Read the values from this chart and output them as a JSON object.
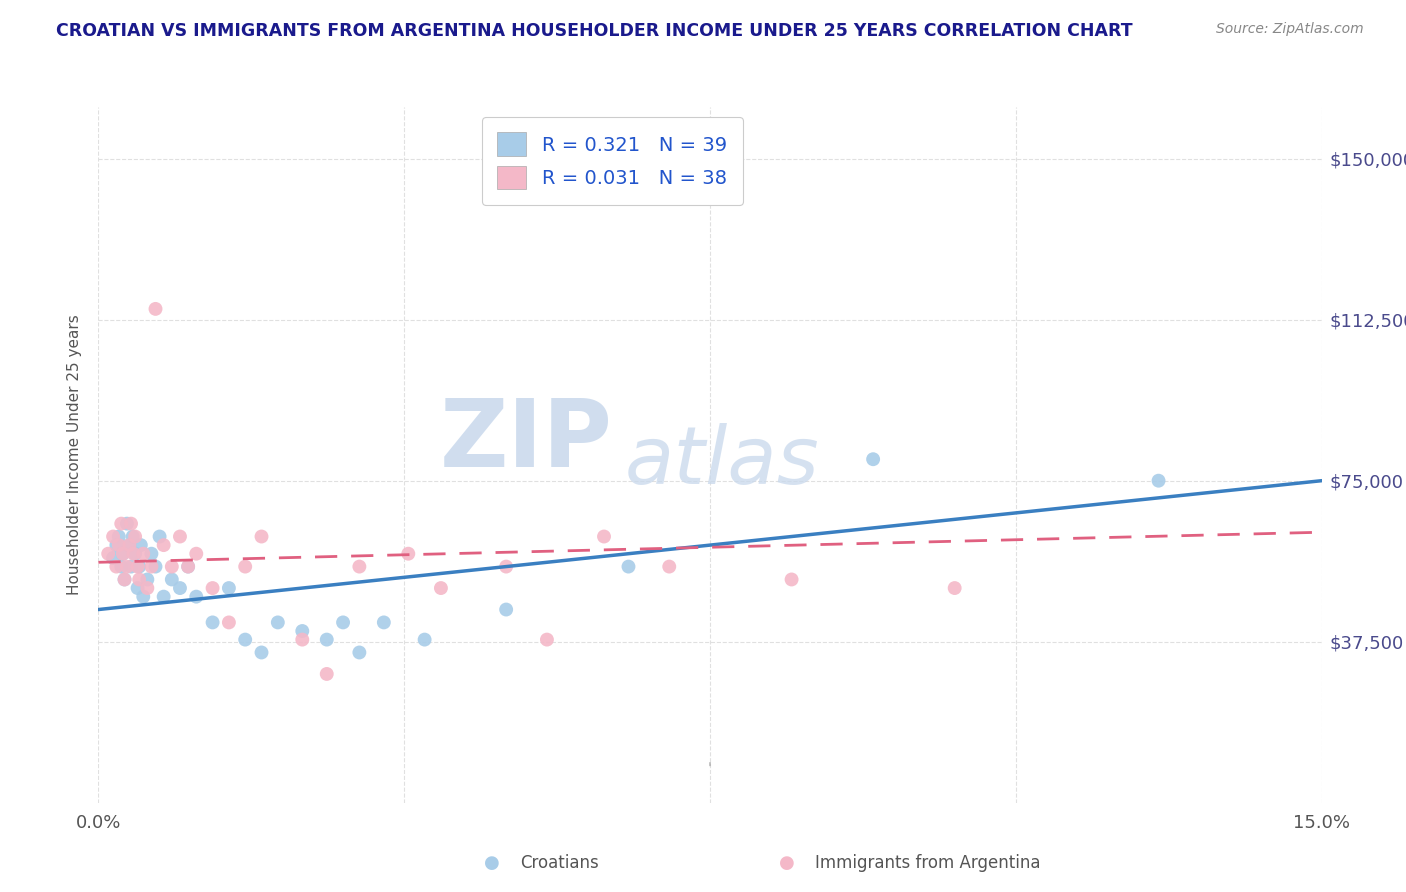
{
  "title": "CROATIAN VS IMMIGRANTS FROM ARGENTINA HOUSEHOLDER INCOME UNDER 25 YEARS CORRELATION CHART",
  "source": "Source: ZipAtlas.com",
  "ylabel": "Householder Income Under 25 years",
  "yticks": [
    0,
    37500,
    75000,
    112500,
    150000
  ],
  "ytick_labels": [
    "",
    "$37,500",
    "$75,000",
    "$112,500",
    "$150,000"
  ],
  "xtick_labels": [
    "0.0%",
    "15.0%"
  ],
  "xmin": 0.0,
  "xmax": 15.0,
  "ymin": 10000,
  "ymax": 162000,
  "croatians_R": 0.321,
  "croatians_N": 39,
  "argentina_R": 0.031,
  "argentina_N": 38,
  "color_croatians_scatter": "#a8cce8",
  "color_argentina_scatter": "#f4b8c8",
  "color_line_croatians": "#3a7fc1",
  "color_line_argentina": "#e06080",
  "background_color": "#ffffff",
  "grid_color": "#e0e0e0",
  "title_color": "#1a1a8c",
  "axis_label_color": "#4a4a8c",
  "legend_text_color": "#2255cc",
  "watermark_zip_color": "#c8d8ec",
  "watermark_atlas_color": "#c8d8ec",
  "croatians_x": [
    0.18,
    0.22,
    0.25,
    0.28,
    0.3,
    0.32,
    0.35,
    0.38,
    0.4,
    0.42,
    0.45,
    0.48,
    0.5,
    0.52,
    0.55,
    0.6,
    0.65,
    0.7,
    0.75,
    0.8,
    0.9,
    1.0,
    1.1,
    1.2,
    1.4,
    1.6,
    1.8,
    2.0,
    2.2,
    2.5,
    2.8,
    3.0,
    3.2,
    3.5,
    4.0,
    5.0,
    6.5,
    9.5,
    13.0
  ],
  "croatians_y": [
    57000,
    60000,
    62000,
    55000,
    58000,
    52000,
    65000,
    60000,
    55000,
    62000,
    58000,
    50000,
    55000,
    60000,
    48000,
    52000,
    58000,
    55000,
    62000,
    48000,
    52000,
    50000,
    55000,
    48000,
    42000,
    50000,
    38000,
    35000,
    42000,
    40000,
    38000,
    42000,
    35000,
    42000,
    38000,
    45000,
    55000,
    80000,
    75000
  ],
  "argentina_x": [
    0.12,
    0.18,
    0.22,
    0.25,
    0.28,
    0.3,
    0.32,
    0.35,
    0.38,
    0.4,
    0.43,
    0.45,
    0.48,
    0.5,
    0.55,
    0.6,
    0.65,
    0.7,
    0.8,
    0.9,
    1.0,
    1.1,
    1.2,
    1.4,
    1.6,
    1.8,
    2.0,
    2.5,
    2.8,
    3.2,
    3.8,
    4.2,
    5.0,
    5.5,
    6.2,
    7.0,
    8.5,
    10.5
  ],
  "argentina_y": [
    58000,
    62000,
    55000,
    60000,
    65000,
    58000,
    52000,
    55000,
    60000,
    65000,
    58000,
    62000,
    55000,
    52000,
    58000,
    50000,
    55000,
    115000,
    60000,
    55000,
    62000,
    55000,
    58000,
    50000,
    42000,
    55000,
    62000,
    38000,
    30000,
    55000,
    58000,
    50000,
    55000,
    38000,
    62000,
    55000,
    52000,
    50000
  ],
  "line_croatians_y0": 45000,
  "line_croatians_y1": 75000,
  "line_argentina_y0": 56000,
  "line_argentina_y1": 63000
}
